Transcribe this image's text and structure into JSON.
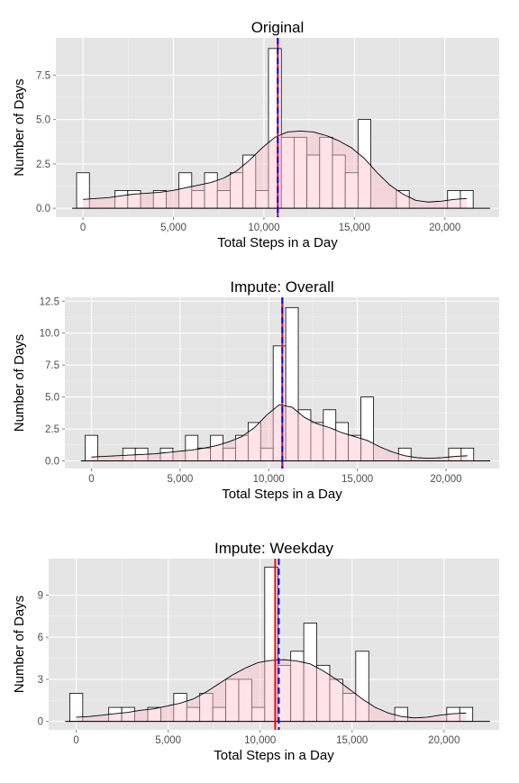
{
  "colors": {
    "panel_bg": "#e5e5e5",
    "grid_major": "#ffffff",
    "grid_minor": "#f2f2f2",
    "bar_fill": "#ffffff",
    "bar_stroke": "#000000",
    "density_fill": "#ffc0cb",
    "density_stroke": "#000000",
    "mean_line": "#ff0000",
    "median_line": "#0000ff",
    "tick_text": "#4d4d4d"
  },
  "chart_data": [
    {
      "type": "bar",
      "title": "Original",
      "xlabel": "Total Steps in a Day",
      "ylabel": "Number of Days",
      "x_ticks": [
        0,
        5000,
        10000,
        15000,
        20000
      ],
      "x_tick_labels": [
        "0",
        "5,000",
        "10,000",
        "15,000",
        "20,000"
      ],
      "xlim": [
        -1500,
        23000
      ],
      "y_ticks": [
        0,
        2.5,
        5,
        7.5
      ],
      "y_tick_labels": [
        "0.0",
        "2.5",
        "5.0",
        "7.5"
      ],
      "ylim": [
        -0.5,
        9.6
      ],
      "bin_width": 707,
      "bin_centers": [
        0,
        707,
        1414,
        2121,
        2828,
        3535,
        4242,
        4949,
        5656,
        6363,
        7070,
        7777,
        8484,
        9191,
        9898,
        10605,
        11312,
        12019,
        12726,
        13433,
        14140,
        14847,
        15554,
        16261,
        16968,
        17675,
        18382,
        19089,
        19796,
        20503,
        21210
      ],
      "counts": [
        2,
        0,
        0,
        1,
        1,
        0,
        1,
        0,
        2,
        1,
        2,
        1,
        2,
        3,
        1,
        9,
        4,
        4,
        3,
        4,
        3,
        2,
        5,
        0,
        0,
        1,
        0,
        0,
        0,
        1,
        1
      ],
      "density": [
        0.5,
        0.55,
        0.6,
        0.7,
        0.8,
        0.85,
        0.9,
        1.0,
        1.15,
        1.3,
        1.45,
        1.7,
        2.1,
        2.7,
        3.4,
        4.0,
        4.3,
        4.35,
        4.3,
        4.1,
        3.8,
        3.4,
        2.8,
        2.0,
        1.3,
        0.8,
        0.45,
        0.35,
        0.4,
        0.5,
        0.55
      ],
      "density_x_range": [
        0,
        21210
      ],
      "mean": 10766,
      "median": 10765
    },
    {
      "type": "bar",
      "title": "Impute: Overall",
      "xlabel": "Total Steps in a Day",
      "ylabel": "Number of Days",
      "x_ticks": [
        0,
        5000,
        10000,
        15000,
        20000
      ],
      "x_tick_labels": [
        "0",
        "5,000",
        "10,000",
        "15,000",
        "20,000"
      ],
      "xlim": [
        -1500,
        23000
      ],
      "y_ticks": [
        0,
        2.5,
        5,
        7.5,
        10,
        12.5
      ],
      "y_tick_labels": [
        "0.0",
        "2.5",
        "5.0",
        "7.5",
        "10.0",
        "12.5"
      ],
      "ylim": [
        -0.6,
        12.8
      ],
      "bin_width": 707,
      "bin_centers": [
        0,
        707,
        1414,
        2121,
        2828,
        3535,
        4242,
        4949,
        5656,
        6363,
        7070,
        7777,
        8484,
        9191,
        9898,
        10605,
        11312,
        12019,
        12726,
        13433,
        14140,
        14847,
        15554,
        16261,
        16968,
        17675,
        18382,
        19089,
        19796,
        20503,
        21210
      ],
      "counts": [
        2,
        0,
        0,
        1,
        1,
        0,
        1,
        0,
        2,
        1,
        2,
        1,
        2,
        3,
        1,
        9,
        12,
        4,
        3,
        4,
        3,
        2,
        5,
        0,
        0,
        1,
        0,
        0,
        0,
        1,
        1
      ],
      "density": [
        0.3,
        0.35,
        0.4,
        0.45,
        0.5,
        0.55,
        0.65,
        0.75,
        0.85,
        1.0,
        1.2,
        1.5,
        1.9,
        2.6,
        3.6,
        4.4,
        4.2,
        3.4,
        2.9,
        2.6,
        2.2,
        1.9,
        1.6,
        1.1,
        0.7,
        0.4,
        0.25,
        0.2,
        0.25,
        0.35,
        0.4
      ],
      "density_x_range": [
        0,
        21210
      ],
      "mean": 10766,
      "median": 10766
    },
    {
      "type": "bar",
      "title": "Impute: Weekday",
      "xlabel": "Total Steps in a Day",
      "ylabel": "Number of Days",
      "x_ticks": [
        0,
        5000,
        10000,
        15000,
        20000
      ],
      "x_tick_labels": [
        "0",
        "5,000",
        "10,000",
        "15,000",
        "20,000"
      ],
      "xlim": [
        -1500,
        23000
      ],
      "y_ticks": [
        0,
        3,
        6,
        9
      ],
      "y_tick_labels": [
        "0",
        "3",
        "6",
        "9"
      ],
      "ylim": [
        -0.6,
        11.6
      ],
      "bin_width": 707,
      "bin_centers": [
        0,
        707,
        1414,
        2121,
        2828,
        3535,
        4242,
        4949,
        5656,
        6363,
        7070,
        7777,
        8484,
        9191,
        9898,
        10605,
        11312,
        12019,
        12726,
        13433,
        14140,
        14847,
        15554,
        16261,
        16968,
        17675,
        18382,
        19089,
        19796,
        20503,
        21210
      ],
      "counts": [
        2,
        0,
        0,
        1,
        1,
        0,
        1,
        0,
        2,
        1,
        2,
        1,
        3,
        3,
        1,
        11,
        4,
        5,
        7,
        4,
        3,
        2,
        5,
        0,
        0,
        1,
        0,
        0,
        0,
        1,
        1
      ],
      "density": [
        0.3,
        0.35,
        0.45,
        0.55,
        0.65,
        0.8,
        0.9,
        1.1,
        1.3,
        1.6,
        2.1,
        2.7,
        3.3,
        3.8,
        4.2,
        4.35,
        4.4,
        4.3,
        4.1,
        3.6,
        3.0,
        2.3,
        1.6,
        1.0,
        0.6,
        0.35,
        0.25,
        0.3,
        0.45,
        0.55,
        0.6
      ],
      "density_x_range": [
        0,
        21210
      ],
      "mean": 10820,
      "median": 11015
    }
  ]
}
